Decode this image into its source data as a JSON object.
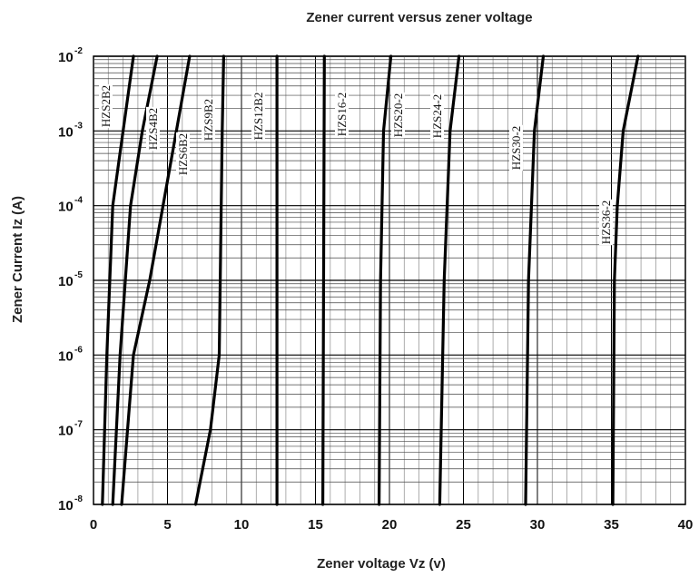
{
  "chart_data": {
    "type": "line",
    "title": "Zener current versus zener voltage",
    "xlabel": "Zener voltage Vz (v)",
    "ylabel": "Zener Current Iz (A)",
    "x_ticks": [
      "0",
      "5",
      "10",
      "15",
      "20",
      "25",
      "30",
      "35",
      "40"
    ],
    "y_ticks": [
      {
        "base": "10",
        "exp": "-8"
      },
      {
        "base": "10",
        "exp": "-7"
      },
      {
        "base": "10",
        "exp": "-6"
      },
      {
        "base": "10",
        "exp": "-5"
      },
      {
        "base": "10",
        "exp": "-4"
      },
      {
        "base": "10",
        "exp": "-3"
      },
      {
        "base": "10",
        "exp": "-2"
      }
    ],
    "xlim": [
      0,
      40
    ],
    "ylim": [
      1e-08,
      0.01
    ],
    "y_scale": "log",
    "grid": true,
    "series": [
      {
        "name": "HZS2B2",
        "points": [
          [
            0.6,
            1e-08
          ],
          [
            0.9,
            1e-06
          ],
          [
            1.3,
            0.0001
          ],
          [
            2.0,
            0.001
          ],
          [
            2.7,
            0.01
          ]
        ]
      },
      {
        "name": "HZS4B2",
        "points": [
          [
            1.3,
            1e-08
          ],
          [
            1.8,
            1e-06
          ],
          [
            2.5,
            0.0001
          ],
          [
            3.3,
            0.001
          ],
          [
            4.3,
            0.01
          ]
        ]
      },
      {
        "name": "HZS6B2",
        "points": [
          [
            1.9,
            1e-08
          ],
          [
            2.7,
            1e-06
          ],
          [
            3.8,
            1e-05
          ],
          [
            4.7,
            0.0001
          ],
          [
            5.6,
            0.001
          ],
          [
            6.5,
            0.01
          ]
        ]
      },
      {
        "name": "HZS9B2",
        "points": [
          [
            6.9,
            1e-08
          ],
          [
            7.9,
            1e-07
          ],
          [
            8.5,
            1e-06
          ],
          [
            8.7,
            0.001
          ],
          [
            8.8,
            0.01
          ]
        ]
      },
      {
        "name": "HZS12B2",
        "points": [
          [
            12.4,
            1e-08
          ],
          [
            12.4,
            0.01
          ]
        ]
      },
      {
        "name": "HZS16-2",
        "points": [
          [
            15.5,
            1e-08
          ],
          [
            15.6,
            0.01
          ]
        ]
      },
      {
        "name": "HZS20-2",
        "points": [
          [
            19.3,
            1e-08
          ],
          [
            19.4,
            1e-05
          ],
          [
            19.6,
            0.001
          ],
          [
            20.1,
            0.01
          ]
        ]
      },
      {
        "name": "HZS24-2",
        "points": [
          [
            23.4,
            1e-08
          ],
          [
            23.7,
            1e-05
          ],
          [
            24.1,
            0.001
          ],
          [
            24.7,
            0.01
          ]
        ]
      },
      {
        "name": "HZS30-2",
        "points": [
          [
            29.2,
            1e-08
          ],
          [
            29.4,
            1e-05
          ],
          [
            29.8,
            0.001
          ],
          [
            30.4,
            0.01
          ]
        ]
      },
      {
        "name": "HZS36-2",
        "points": [
          [
            35.1,
            1e-08
          ],
          [
            35.2,
            1e-05
          ],
          [
            35.4,
            0.0001
          ],
          [
            35.8,
            0.001
          ],
          [
            36.8,
            0.01
          ]
        ]
      }
    ]
  }
}
